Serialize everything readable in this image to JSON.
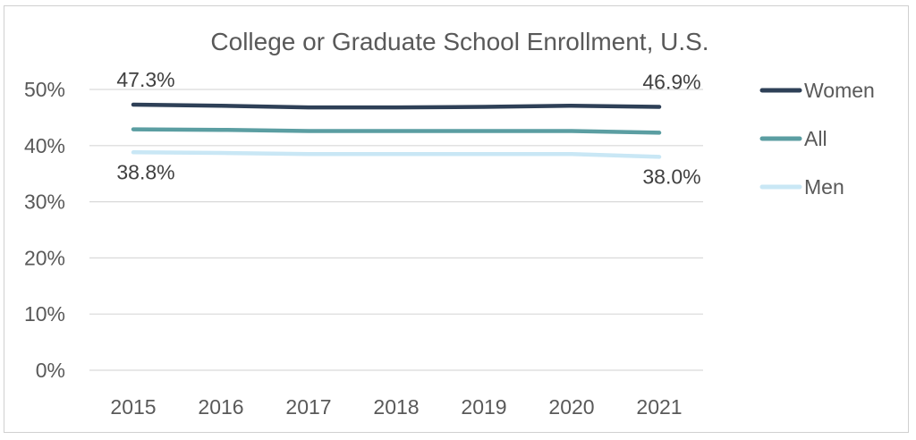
{
  "chart_data": {
    "type": "line",
    "title": "College or Graduate School Enrollment, U.S.",
    "xlabel": "",
    "ylabel": "",
    "categories": [
      "2015",
      "2016",
      "2017",
      "2018",
      "2019",
      "2020",
      "2021"
    ],
    "ylim": [
      0,
      50
    ],
    "yticks": [
      "0%",
      "10%",
      "20%",
      "30%",
      "40%",
      "50%"
    ],
    "grid": true,
    "legend_position": "right",
    "series": [
      {
        "name": "Women",
        "color": "#2e4057",
        "values": [
          47.3,
          47.1,
          46.8,
          46.8,
          46.9,
          47.1,
          46.9
        ]
      },
      {
        "name": "All",
        "color": "#5b9ea2",
        "values": [
          42.9,
          42.8,
          42.6,
          42.6,
          42.6,
          42.6,
          42.3
        ]
      },
      {
        "name": "Men",
        "color": "#c9e7f5",
        "values": [
          38.8,
          38.7,
          38.5,
          38.5,
          38.5,
          38.5,
          38.0
        ]
      }
    ],
    "data_labels": [
      {
        "series": "Women",
        "index": 0,
        "text": "47.3%",
        "placement": "above"
      },
      {
        "series": "Women",
        "index": 6,
        "text": "46.9%",
        "placement": "above"
      },
      {
        "series": "Men",
        "index": 0,
        "text": "38.8%",
        "placement": "below"
      },
      {
        "series": "Men",
        "index": 6,
        "text": "38.0%",
        "placement": "below"
      }
    ]
  }
}
